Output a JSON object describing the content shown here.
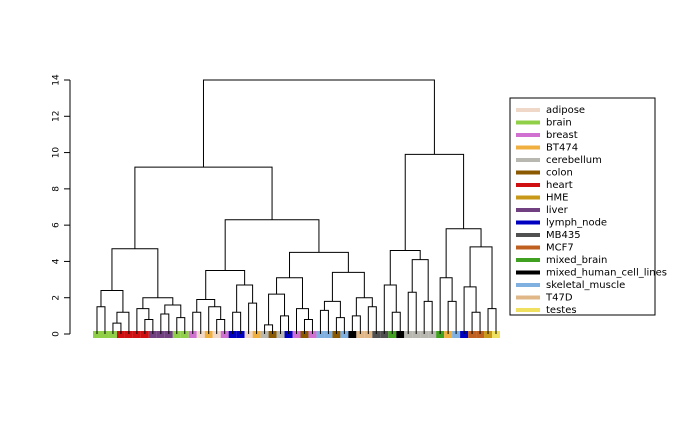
{
  "chart_data": {
    "type": "dendrogram",
    "ylim": [
      0,
      14
    ],
    "yticks": [
      0,
      2,
      4,
      6,
      8,
      10,
      12,
      14
    ],
    "legend": [
      {
        "name": "adipose",
        "color": "#f0d8c8"
      },
      {
        "name": "brain",
        "color": "#90d048"
      },
      {
        "name": "breast",
        "color": "#d070d0"
      },
      {
        "name": "BT474",
        "color": "#f0b040"
      },
      {
        "name": "cerebellum",
        "color": "#b8b8b0"
      },
      {
        "name": "colon",
        "color": "#8b5a00"
      },
      {
        "name": "heart",
        "color": "#d01010"
      },
      {
        "name": "HME",
        "color": "#c89818"
      },
      {
        "name": "liver",
        "color": "#704080"
      },
      {
        "name": "lymph_node",
        "color": "#0000c0"
      },
      {
        "name": "MB435",
        "color": "#505050"
      },
      {
        "name": "MCF7",
        "color": "#c06020"
      },
      {
        "name": "mixed_brain",
        "color": "#40a020"
      },
      {
        "name": "mixed_human_cell_lines",
        "color": "#000000"
      },
      {
        "name": "skeletal_muscle",
        "color": "#80b0e0"
      },
      {
        "name": "T47D",
        "color": "#e0b888"
      },
      {
        "name": "testes",
        "color": "#f0e060"
      }
    ],
    "tree": {
      "height": 14,
      "children": [
        {
          "height": 9.2,
          "children": [
            {
              "height": 4.7,
              "children": [
                {
                  "height": 2.4,
                  "children": [
                    {
                      "height": 1.5,
                      "children": [
                        1,
                        1
                      ]
                    },
                    {
                      "height": 1.2,
                      "children": [
                        {
                          "height": 0.6,
                          "children": [
                            1,
                            6
                          ]
                        },
                        6
                      ]
                    }
                  ]
                },
                {
                  "height": 2.0,
                  "children": [
                    {
                      "height": 1.4,
                      "children": [
                        6,
                        {
                          "height": 0.8,
                          "children": [
                            6,
                            8
                          ]
                        }
                      ]
                    },
                    {
                      "height": 1.6,
                      "children": [
                        {
                          "height": 1.1,
                          "children": [
                            8,
                            8
                          ]
                        },
                        {
                          "height": 0.9,
                          "children": [
                            1,
                            1
                          ]
                        }
                      ]
                    }
                  ]
                }
              ]
            },
            {
              "height": 6.3,
              "children": [
                {
                  "height": 3.5,
                  "children": [
                    {
                      "height": 1.9,
                      "children": [
                        {
                          "height": 1.2,
                          "children": [
                            2,
                            0
                          ]
                        },
                        {
                          "height": 1.5,
                          "children": [
                            3,
                            {
                              "height": 0.8,
                              "children": [
                                0,
                                2
                              ]
                            }
                          ]
                        }
                      ]
                    },
                    {
                      "height": 2.7,
                      "children": [
                        {
                          "height": 1.2,
                          "children": [
                            9,
                            9
                          ]
                        },
                        {
                          "height": 1.7,
                          "children": [
                            0,
                            3
                          ]
                        }
                      ]
                    }
                  ]
                },
                {
                  "height": 4.5,
                  "children": [
                    {
                      "height": 3.1,
                      "children": [
                        {
                          "height": 2.2,
                          "children": [
                            {
                              "height": 0.5,
                              "children": [
                                4,
                                5
                              ]
                            },
                            {
                              "height": 1.0,
                              "children": [
                                4,
                                9
                              ]
                            }
                          ]
                        },
                        {
                          "height": 1.4,
                          "children": [
                            2,
                            {
                              "height": 0.8,
                              "children": [
                                5,
                                2
                              ]
                            }
                          ]
                        }
                      ]
                    },
                    {
                      "height": 3.4,
                      "children": [
                        {
                          "height": 1.8,
                          "children": [
                            {
                              "height": 1.3,
                              "children": [
                                14,
                                14
                              ]
                            },
                            {
                              "height": 0.9,
                              "children": [
                                5,
                                14
                              ]
                            }
                          ]
                        },
                        {
                          "height": 2.0,
                          "children": [
                            {
                              "height": 1.0,
                              "children": [
                                13,
                                15
                              ]
                            },
                            {
                              "height": 1.5,
                              "children": [
                                15,
                                10
                              ]
                            }
                          ]
                        }
                      ]
                    }
                  ]
                }
              ]
            }
          ]
        },
        {
          "height": 9.9,
          "children": [
            {
              "height": 4.6,
              "children": [
                {
                  "height": 2.7,
                  "children": [
                    10,
                    {
                      "height": 1.2,
                      "children": [
                        12,
                        13
                      ]
                    }
                  ]
                },
                {
                  "height": 4.1,
                  "children": [
                    {
                      "height": 2.3,
                      "children": [
                        4,
                        4
                      ]
                    },
                    {
                      "height": 1.8,
                      "children": [
                        4,
                        4
                      ]
                    }
                  ]
                }
              ]
            },
            {
              "height": 5.8,
              "children": [
                {
                  "height": 3.1,
                  "children": [
                    12,
                    {
                      "height": 1.8,
                      "children": [
                        3,
                        14
                      ]
                    }
                  ]
                },
                {
                  "height": 4.8,
                  "children": [
                    {
                      "height": 2.6,
                      "children": [
                        9,
                        {
                          "height": 1.2,
                          "children": [
                            11,
                            11
                          ]
                        }
                      ]
                    },
                    {
                      "height": 1.4,
                      "children": [
                        7,
                        16
                      ]
                    }
                  ]
                }
              ]
            }
          ]
        }
      ]
    }
  }
}
